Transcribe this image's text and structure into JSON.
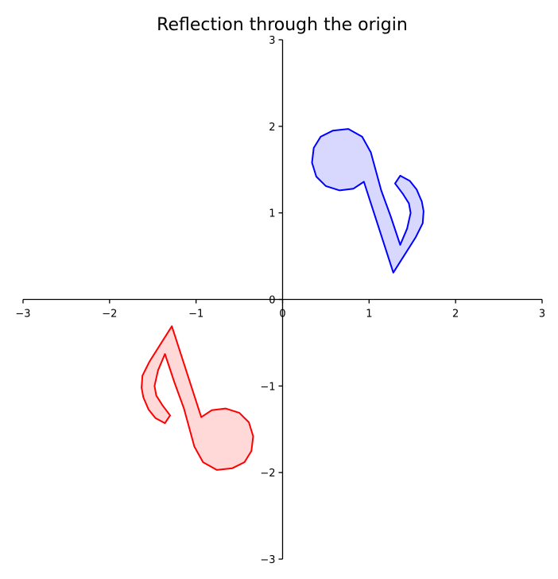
{
  "chart_data": {
    "type": "line",
    "title": "Reflection through the origin",
    "xlabel": "",
    "ylabel": "",
    "xlim": [
      -3,
      3
    ],
    "ylim": [
      -3,
      3
    ],
    "xticks": [
      -3,
      -2,
      -1,
      0,
      1,
      2,
      3
    ],
    "yticks": [
      -3,
      -2,
      -1,
      0,
      1,
      2,
      3
    ],
    "xtick_labels": [
      "−3",
      "−2",
      "−1",
      "0",
      "1",
      "2",
      "3"
    ],
    "ytick_labels": [
      "−3",
      "−2",
      "−1",
      "0",
      "1",
      "2",
      "3"
    ],
    "spines": "centered at origin",
    "grid": false,
    "series": [
      {
        "color": "#0000ff",
        "fill": "#d8d8ff",
        "points": [
          [
            1.28,
            0.31
          ],
          [
            1.54,
            0.72
          ],
          [
            1.62,
            0.88
          ],
          [
            1.63,
            1.02
          ],
          [
            1.61,
            1.13
          ],
          [
            1.55,
            1.27
          ],
          [
            1.47,
            1.37
          ],
          [
            1.36,
            1.43
          ],
          [
            1.3,
            1.34
          ],
          [
            1.39,
            1.22
          ],
          [
            1.46,
            1.11
          ],
          [
            1.48,
            1.0
          ],
          [
            1.44,
            0.82
          ],
          [
            1.36,
            0.63
          ],
          [
            1.25,
            0.96
          ],
          [
            1.14,
            1.26
          ],
          [
            1.02,
            1.7
          ],
          [
            0.92,
            1.88
          ],
          [
            0.76,
            1.97
          ],
          [
            0.58,
            1.95
          ],
          [
            0.44,
            1.88
          ],
          [
            0.36,
            1.75
          ],
          [
            0.34,
            1.58
          ],
          [
            0.39,
            1.42
          ],
          [
            0.5,
            1.31
          ],
          [
            0.66,
            1.26
          ],
          [
            0.82,
            1.28
          ],
          [
            0.94,
            1.36
          ]
        ]
      },
      {
        "color": "#ff0000",
        "fill": "#ffd8d8",
        "points": [
          [
            -1.28,
            -0.31
          ],
          [
            -1.54,
            -0.72
          ],
          [
            -1.62,
            -0.88
          ],
          [
            -1.63,
            -1.02
          ],
          [
            -1.61,
            -1.13
          ],
          [
            -1.55,
            -1.27
          ],
          [
            -1.47,
            -1.37
          ],
          [
            -1.36,
            -1.43
          ],
          [
            -1.3,
            -1.34
          ],
          [
            -1.39,
            -1.22
          ],
          [
            -1.46,
            -1.11
          ],
          [
            -1.48,
            -1.0
          ],
          [
            -1.44,
            -0.82
          ],
          [
            -1.36,
            -0.63
          ],
          [
            -1.25,
            -0.96
          ],
          [
            -1.14,
            -1.26
          ],
          [
            -1.02,
            -1.7
          ],
          [
            -0.92,
            -1.88
          ],
          [
            -0.76,
            -1.97
          ],
          [
            -0.58,
            -1.95
          ],
          [
            -0.44,
            -1.88
          ],
          [
            -0.36,
            -1.75
          ],
          [
            -0.34,
            -1.58
          ],
          [
            -0.39,
            -1.42
          ],
          [
            -0.5,
            -1.31
          ],
          [
            -0.66,
            -1.26
          ],
          [
            -0.82,
            -1.28
          ],
          [
            -0.94,
            -1.36
          ]
        ]
      }
    ]
  }
}
